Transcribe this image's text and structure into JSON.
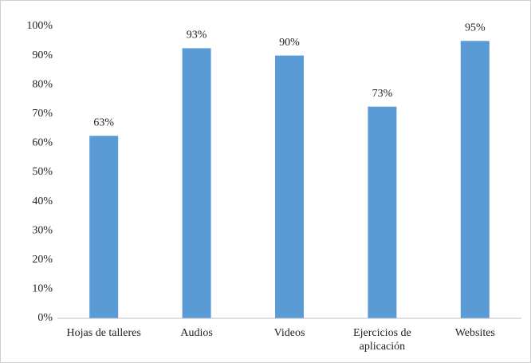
{
  "chart_data": {
    "type": "bar",
    "categories": [
      "Hojas de talleres",
      "Audios",
      "Videos",
      "Ejercicios de aplicación",
      "Websites"
    ],
    "values": [
      62.5,
      92.5,
      90,
      72.5,
      95
    ],
    "value_labels": [
      "63%",
      "93%",
      "90%",
      "73%",
      "95%"
    ],
    "color": "#5b9bd5",
    "ylim": [
      0,
      100
    ],
    "yticks": [
      {
        "value": 0,
        "label": "0%"
      },
      {
        "value": 10,
        "label": "10%"
      },
      {
        "value": 20,
        "label": "20%"
      },
      {
        "value": 30,
        "label": "30%"
      },
      {
        "value": 40,
        "label": "40%"
      },
      {
        "value": 50,
        "label": "50%"
      },
      {
        "value": 60,
        "label": "60%"
      },
      {
        "value": 70,
        "label": "70%"
      },
      {
        "value": 80,
        "label": "80%"
      },
      {
        "value": 90,
        "label": "90%"
      },
      {
        "value": 100,
        "label": "100%"
      }
    ],
    "grid": false
  }
}
